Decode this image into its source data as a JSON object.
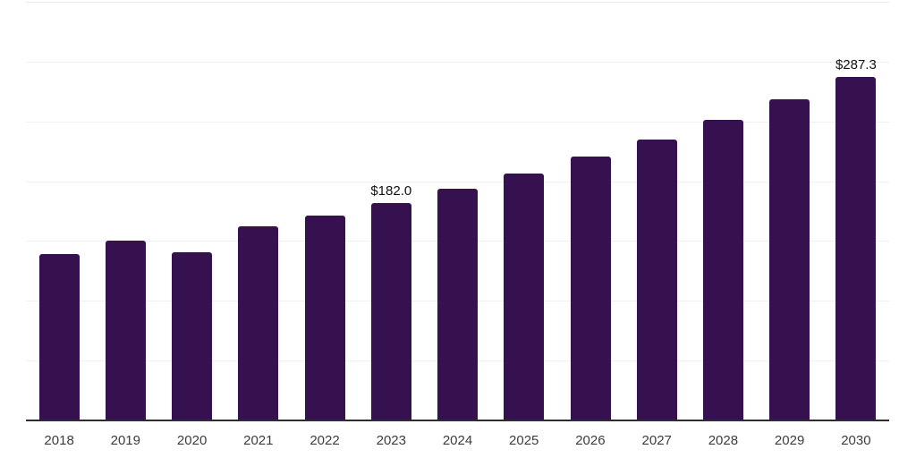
{
  "chart_data": {
    "type": "bar",
    "title": "",
    "xlabel": "",
    "ylabel": "",
    "categories": [
      "2018",
      "2019",
      "2020",
      "2021",
      "2022",
      "2023",
      "2024",
      "2025",
      "2026",
      "2027",
      "2028",
      "2029",
      "2030"
    ],
    "values": [
      139.4,
      150.4,
      140.3,
      162.4,
      171.1,
      182.0,
      194.0,
      206.7,
      220.4,
      235.2,
      251.4,
      268.3,
      287.3
    ],
    "value_labels": [
      {
        "index": 5,
        "text": "$182.0"
      },
      {
        "index": 12,
        "text": "$287.3"
      }
    ],
    "ylim": [
      0,
      350
    ],
    "grid_step": 50,
    "grid": true,
    "legend": false,
    "y_tick_labels_visible": false,
    "colors": {
      "bar": "#361150",
      "axis": "#2e2e2e",
      "gridline": "#f0f0f3",
      "tick_label": "#3d3d3d",
      "value_label": "#111111",
      "background": "#ffffff"
    }
  }
}
